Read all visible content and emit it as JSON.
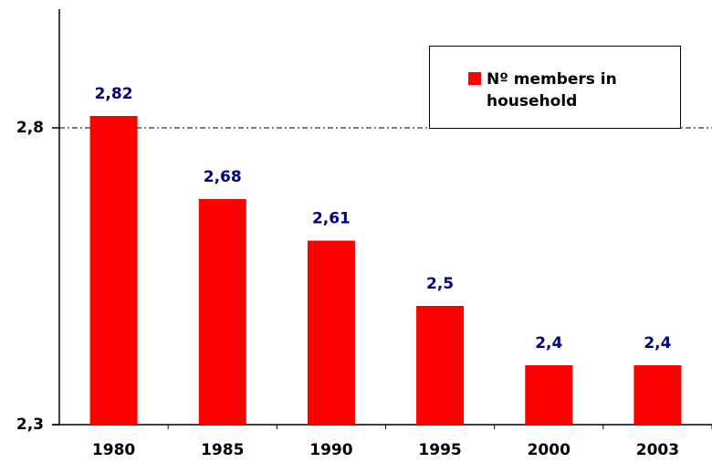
{
  "chart_data": {
    "type": "bar",
    "categories": [
      "1980",
      "1985",
      "1990",
      "1995",
      "2000",
      "2003"
    ],
    "series": [
      {
        "name": "Nº members in household",
        "color": "#ff0000",
        "values": [
          2.82,
          2.68,
          2.61,
          2.5,
          2.4,
          2.4
        ],
        "value_labels": [
          "2,82",
          "2,68",
          "2,61",
          "2,5",
          "2,4",
          "2,4"
        ]
      }
    ],
    "value_label_color": "#000080",
    "ylim": [
      2.3,
      3.0
    ],
    "yticks": [
      {
        "value": 2.3,
        "label": "2,3"
      },
      {
        "value": 2.8,
        "label": "2,8"
      }
    ],
    "grid": true,
    "legend": "top-right"
  }
}
